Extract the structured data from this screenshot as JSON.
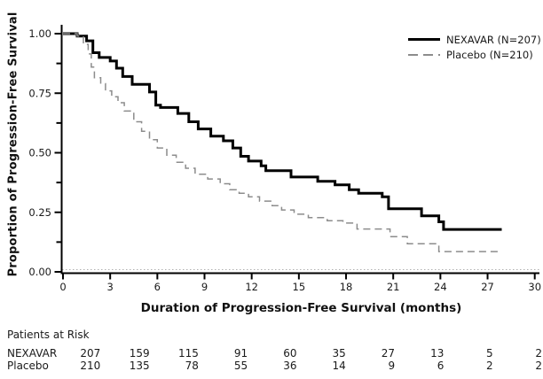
{
  "chart_data": {
    "type": "line",
    "subtype": "kaplan-meier-step",
    "title": "",
    "xlabel": "Duration of Progression-Free Survival (months)",
    "ylabel": "Proportion of Progression-Free Survival",
    "xlim": [
      0,
      30
    ],
    "ylim": [
      0.0,
      1.0
    ],
    "xticks": [
      0,
      3,
      6,
      9,
      12,
      15,
      18,
      21,
      24,
      27,
      30
    ],
    "yticks": [
      0.0,
      0.25,
      0.5,
      0.75,
      1.0
    ],
    "yticks_minor": [
      0.125,
      0.375,
      0.625,
      0.875
    ],
    "grid": "dotted horizontal line at y=0 only",
    "legend_position": "top-right",
    "colors": {
      "nexavar": "#000000",
      "placebo": "#8c8c8c"
    },
    "series": [
      {
        "name": "NEXAVAR (N=207)",
        "n": 207,
        "line": "solid",
        "color": "#000000",
        "stroke_width": 3,
        "points": [
          [
            0,
            1.0
          ],
          [
            0.9,
            0.99
          ],
          [
            1.5,
            0.97
          ],
          [
            1.9,
            0.92
          ],
          [
            2.3,
            0.9
          ],
          [
            3.0,
            0.885
          ],
          [
            3.4,
            0.855
          ],
          [
            3.8,
            0.82
          ],
          [
            4.4,
            0.787
          ],
          [
            5.5,
            0.755
          ],
          [
            5.9,
            0.7
          ],
          [
            6.2,
            0.69
          ],
          [
            7.3,
            0.665
          ],
          [
            8.0,
            0.63
          ],
          [
            8.6,
            0.6
          ],
          [
            9.4,
            0.57
          ],
          [
            10.2,
            0.55
          ],
          [
            10.8,
            0.52
          ],
          [
            11.3,
            0.485
          ],
          [
            11.8,
            0.465
          ],
          [
            12.6,
            0.445
          ],
          [
            12.9,
            0.425
          ],
          [
            14.5,
            0.398
          ],
          [
            16.2,
            0.38
          ],
          [
            17.3,
            0.365
          ],
          [
            18.2,
            0.345
          ],
          [
            18.8,
            0.33
          ],
          [
            20.3,
            0.315
          ],
          [
            20.7,
            0.265
          ],
          [
            22.8,
            0.235
          ],
          [
            23.9,
            0.21
          ],
          [
            24.2,
            0.178
          ],
          [
            27.9,
            0.178
          ]
        ]
      },
      {
        "name": "Placebo (N=210)",
        "n": 210,
        "line": "dashed",
        "color": "#8c8c8c",
        "stroke_width": 1.5,
        "points": [
          [
            0,
            1.0
          ],
          [
            0.9,
            0.99
          ],
          [
            1.3,
            0.955
          ],
          [
            1.6,
            0.915
          ],
          [
            1.8,
            0.86
          ],
          [
            2.0,
            0.815
          ],
          [
            2.4,
            0.79
          ],
          [
            2.7,
            0.76
          ],
          [
            3.1,
            0.735
          ],
          [
            3.5,
            0.71
          ],
          [
            3.9,
            0.675
          ],
          [
            4.5,
            0.63
          ],
          [
            5.0,
            0.59
          ],
          [
            5.5,
            0.555
          ],
          [
            6.0,
            0.52
          ],
          [
            6.6,
            0.49
          ],
          [
            7.2,
            0.46
          ],
          [
            7.8,
            0.435
          ],
          [
            8.4,
            0.41
          ],
          [
            9.2,
            0.39
          ],
          [
            10.0,
            0.37
          ],
          [
            10.6,
            0.345
          ],
          [
            11.2,
            0.33
          ],
          [
            11.8,
            0.315
          ],
          [
            12.5,
            0.297
          ],
          [
            13.3,
            0.278
          ],
          [
            13.9,
            0.26
          ],
          [
            14.7,
            0.242
          ],
          [
            15.6,
            0.228
          ],
          [
            16.8,
            0.215
          ],
          [
            17.8,
            0.205
          ],
          [
            18.7,
            0.18
          ],
          [
            20.8,
            0.148
          ],
          [
            21.9,
            0.118
          ],
          [
            23.9,
            0.085
          ],
          [
            27.9,
            0.085
          ]
        ]
      }
    ],
    "risk_table": {
      "title": "Patients at Risk",
      "timepoints_months": [
        0,
        3,
        6,
        9,
        12,
        15,
        18,
        21,
        24,
        27
      ],
      "rows": [
        {
          "label": "NEXAVAR",
          "counts": [
            207,
            159,
            115,
            91,
            60,
            35,
            27,
            13,
            5,
            2
          ]
        },
        {
          "label": "Placebo",
          "counts": [
            210,
            135,
            78,
            55,
            36,
            14,
            9,
            6,
            2,
            2
          ]
        }
      ]
    }
  }
}
